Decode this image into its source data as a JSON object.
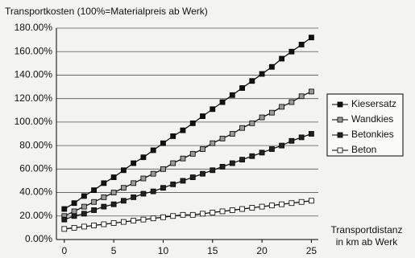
{
  "chart_data": {
    "type": "line",
    "y_label": "Transportkosten (100%=Materialpreis ab Werk)",
    "x_label": [
      "Transportdistanz",
      "in km ab Werk"
    ],
    "x": [
      0,
      1,
      2,
      3,
      4,
      5,
      6,
      7,
      8,
      9,
      10,
      11,
      12,
      13,
      14,
      15,
      16,
      17,
      18,
      19,
      20,
      21,
      22,
      23,
      24,
      25
    ],
    "series": [
      {
        "name": "Kiesersatz",
        "color": "#111111",
        "values": [
          26,
          31,
          37,
          42,
          48,
          53,
          59,
          65,
          70,
          76,
          82,
          88,
          93,
          99,
          105,
          111,
          117,
          123,
          129,
          135,
          141,
          147,
          154,
          160,
          166,
          172
        ]
      },
      {
        "name": "Wandkies",
        "color": "#9a9a9a",
        "values": [
          20,
          24,
          28,
          32,
          36,
          40,
          44,
          48,
          52,
          56,
          60,
          65,
          69,
          73,
          77,
          82,
          86,
          90,
          95,
          99,
          104,
          108,
          113,
          117,
          122,
          126
        ]
      },
      {
        "name": "Betonkies",
        "color": "#222222",
        "values": [
          17,
          20,
          22,
          25,
          28,
          30,
          33,
          36,
          39,
          41,
          44,
          47,
          50,
          53,
          56,
          59,
          62,
          65,
          68,
          71,
          74,
          77,
          80,
          84,
          87,
          90
        ]
      },
      {
        "name": "Beton",
        "color": "#ffffff",
        "values": [
          9,
          10,
          11,
          12,
          13,
          14,
          15,
          16,
          17,
          18,
          19,
          20,
          21,
          21,
          22,
          23,
          24,
          25,
          26,
          27,
          28,
          29,
          30,
          31,
          32,
          33
        ]
      }
    ],
    "line_color": "#000000",
    "xlim": [
      -0.8,
      25.7
    ],
    "xticks": [
      0,
      5,
      10,
      15,
      20,
      25
    ],
    "ylim": [
      0,
      180
    ],
    "yticks": [
      {
        "value": 0,
        "label": "0.00%"
      },
      {
        "value": 20,
        "label": "20.00%"
      },
      {
        "value": 40,
        "label": "40.00%"
      },
      {
        "value": 60,
        "label": "60.00%"
      },
      {
        "value": 80,
        "label": "80.00%"
      },
      {
        "value": 100,
        "label": "100.00%"
      },
      {
        "value": 120,
        "label": "120.00%"
      },
      {
        "value": 140,
        "label": "140.00%"
      },
      {
        "value": 160,
        "label": "160.00%"
      },
      {
        "value": 180,
        "label": "180.00%"
      }
    ],
    "grid": true,
    "legend": "right"
  }
}
